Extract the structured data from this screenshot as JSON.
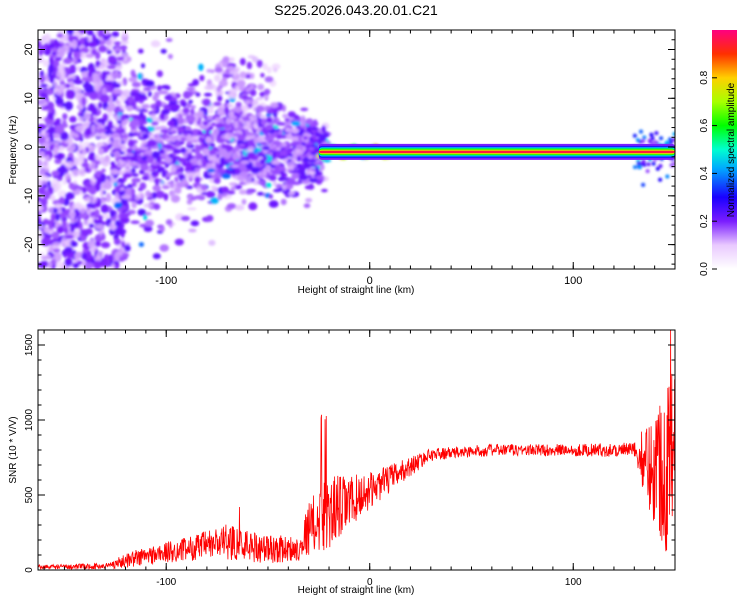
{
  "title": "S225.2026.043.20.01.C21",
  "chart_data": [
    {
      "type": "heatmap",
      "xlabel": "Height of straight line (km)",
      "ylabel": "Frequency (Hz)",
      "xlim": [
        -163,
        150
      ],
      "ylim": [
        -25,
        24
      ],
      "xticks": [
        -100,
        0,
        100
      ],
      "yticks": [
        -20,
        -10,
        0,
        10,
        20
      ],
      "colorbar": {
        "label": "Normalized spectral amplitude",
        "range": [
          0,
          1
        ],
        "ticks": [
          0.0,
          0.2,
          0.4,
          0.6,
          0.8
        ]
      },
      "ridge": {
        "start_x": -25,
        "end_x": 150,
        "frequency": -1,
        "peak_amplitude": 0.95
      }
    },
    {
      "type": "line",
      "series": [
        {
          "name": "SNR",
          "color": "#ff0000"
        }
      ],
      "xlabel": "Height of straight line (km)",
      "ylabel": "SNR (10 * V/V)",
      "xlim": [
        -163,
        150
      ],
      "ylim": [
        0,
        1600
      ],
      "xticks": [
        -100,
        0,
        100
      ],
      "yticks": [
        0,
        500,
        1000,
        1500
      ],
      "envelope": [
        {
          "x": -163,
          "mean": 20,
          "noise": 15
        },
        {
          "x": -130,
          "mean": 25,
          "noise": 20
        },
        {
          "x": -115,
          "mean": 80,
          "noise": 60
        },
        {
          "x": -90,
          "mean": 140,
          "noise": 80
        },
        {
          "x": -70,
          "mean": 190,
          "noise": 120
        },
        {
          "x": -50,
          "mean": 140,
          "noise": 100
        },
        {
          "x": -35,
          "mean": 140,
          "noise": 80
        },
        {
          "x": -30,
          "mean": 280,
          "noise": 180
        },
        {
          "x": -20,
          "mean": 380,
          "noise": 260
        },
        {
          "x": -10,
          "mean": 450,
          "noise": 180
        },
        {
          "x": 0,
          "mean": 530,
          "noise": 120
        },
        {
          "x": 15,
          "mean": 650,
          "noise": 80
        },
        {
          "x": 30,
          "mean": 770,
          "noise": 40
        },
        {
          "x": 60,
          "mean": 800,
          "noise": 40
        },
        {
          "x": 100,
          "mean": 800,
          "noise": 40
        },
        {
          "x": 130,
          "mean": 800,
          "noise": 50
        },
        {
          "x": 137,
          "mean": 700,
          "noise": 300
        },
        {
          "x": 150,
          "mean": 700,
          "noise": 750
        }
      ]
    }
  ]
}
